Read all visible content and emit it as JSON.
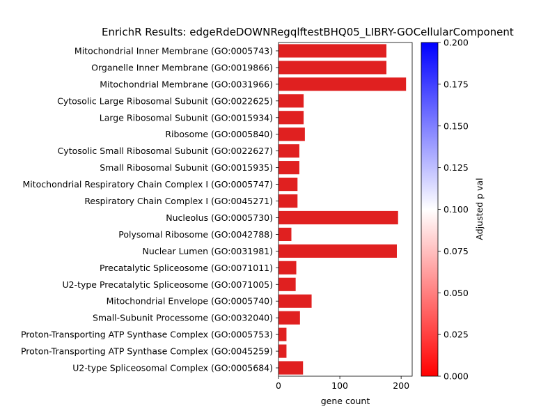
{
  "chart_data": {
    "type": "bar",
    "orientation": "horizontal",
    "title": "EnrichR Results: edgeRdeDOWNRegqlftestBHQ05_LIBRY-GOCellularComponent",
    "xlabel": "gene count",
    "ylabel": "",
    "xlim": [
      0,
      218
    ],
    "xticks": [
      0,
      100,
      200
    ],
    "bar_color": "#e02020",
    "categories": [
      "Mitochondrial Inner Membrane (GO:0005743)",
      "Organelle Inner Membrane (GO:0019866)",
      "Mitochondrial Membrane (GO:0031966)",
      "Cytosolic Large Ribosomal Subunit (GO:0022625)",
      "Large Ribosomal Subunit (GO:0015934)",
      "Ribosome (GO:0005840)",
      "Cytosolic Small Ribosomal Subunit (GO:0022627)",
      "Small Ribosomal Subunit (GO:0015935)",
      "Mitochondrial Respiratory Chain Complex I (GO:0005747)",
      "Respiratory Chain Complex I (GO:0045271)",
      "Nucleolus (GO:0005730)",
      "Polysomal Ribosome (GO:0042788)",
      "Nuclear Lumen (GO:0031981)",
      "Precatalytic Spliceosome (GO:0071011)",
      "U2-type Precatalytic Spliceosome (GO:0071005)",
      "Mitochondrial Envelope (GO:0005740)",
      "Small-Subunit Processome (GO:0032040)",
      "Proton-Transporting ATP Synthase Complex (GO:0005753)",
      "Proton-Transporting ATP Synthase Complex (GO:0045259)",
      "U2-type Spliceosomal Complex (GO:0005684)"
    ],
    "values": [
      176,
      176,
      208,
      41,
      41,
      43,
      34,
      34,
      31,
      31,
      195,
      21,
      193,
      29,
      28,
      54,
      35,
      13,
      13,
      40
    ],
    "colorbar": {
      "label": "Adjusted p val",
      "range": [
        0,
        0.2
      ],
      "ticks": [
        "0.000",
        "0.025",
        "0.050",
        "0.075",
        "0.100",
        "0.125",
        "0.150",
        "0.175",
        "0.200"
      ],
      "colors": [
        "#ff0000",
        "#ffffff",
        "#0000ff"
      ]
    }
  }
}
